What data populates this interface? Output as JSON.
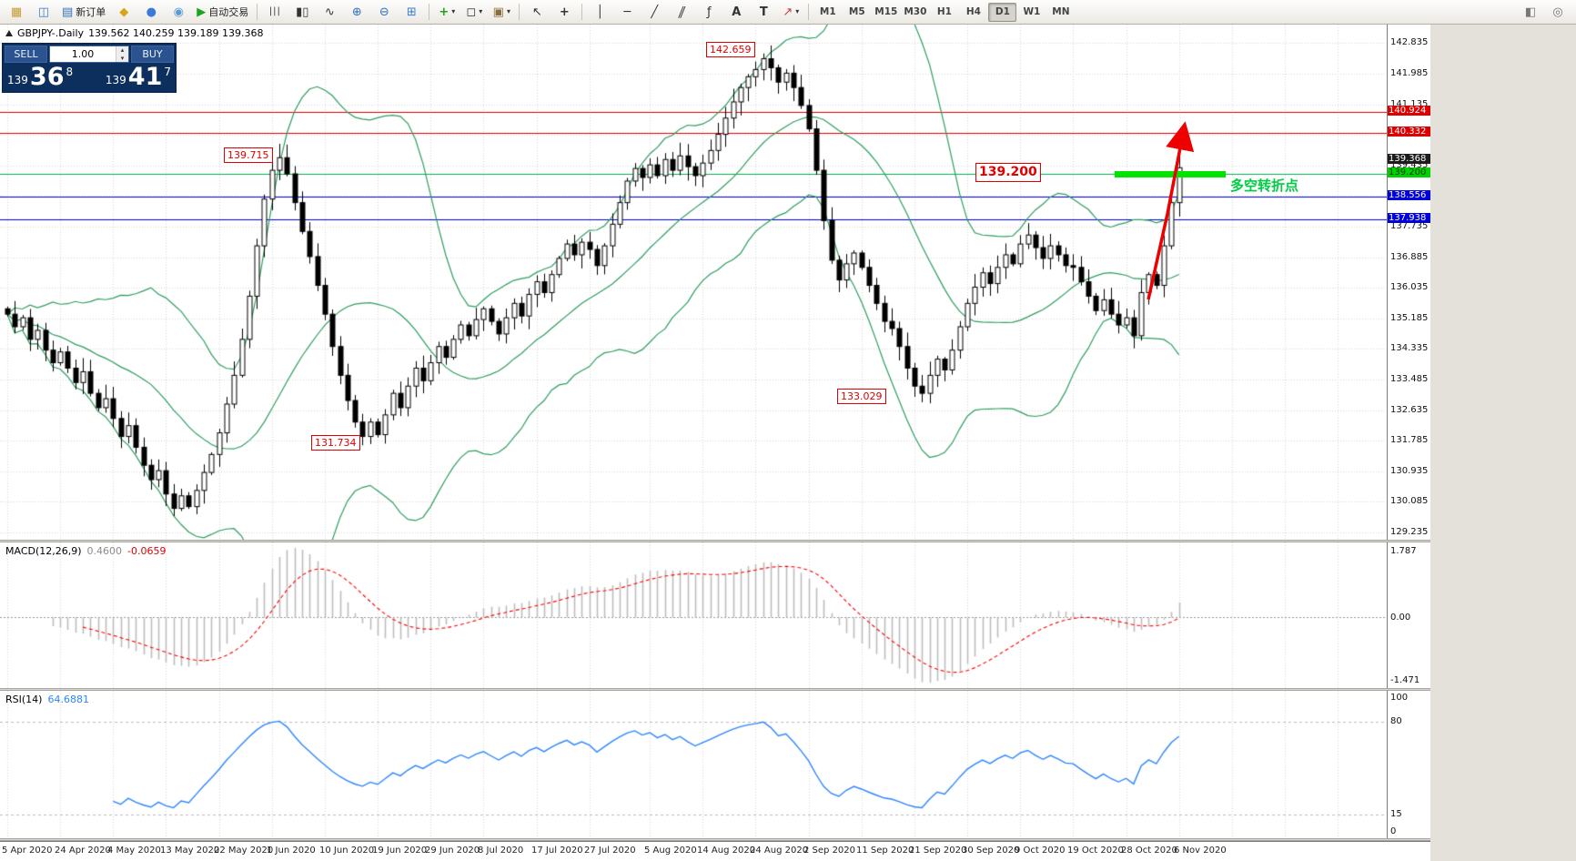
{
  "toolbar": {
    "new_order_label": "新订单",
    "autotrading_label": "自动交易",
    "timeframes": [
      "M1",
      "M5",
      "M15",
      "M30",
      "H1",
      "H4",
      "D1",
      "W1",
      "MN"
    ],
    "active_timeframe": "D1"
  },
  "chart": {
    "symbol": "GBPJPY-.Daily",
    "ohlc": "139.562 140.259 139.189 139.368"
  },
  "trade_panel": {
    "sell_label": "SELL",
    "buy_label": "BUY",
    "volume": "1.00",
    "sell_price_main": "139",
    "sell_price_big": "36",
    "sell_price_sup": "8",
    "buy_price_main": "139",
    "buy_price_big": "41",
    "buy_price_sup": "7"
  },
  "annotations": {
    "high_142": "142.659",
    "high_139": "139.715",
    "level_139200": "139.200",
    "low_133": "133.029",
    "low_131": "131.734",
    "turning_point_text": "多空转折点"
  },
  "levels": {
    "resistance": [
      {
        "price": 140.924,
        "label": "140.924",
        "color": "#dd0000"
      },
      {
        "price": 140.332,
        "label": "140.332",
        "color": "#dd0000"
      }
    ],
    "pivot": {
      "price": 139.2,
      "label": "139.200",
      "color": "#00b050",
      "badge_bg": "#00d200",
      "badge_fg": "#003300"
    },
    "support": [
      {
        "price": 138.556,
        "label": "138.556",
        "color": "#0000dd"
      },
      {
        "price": 137.938,
        "label": "137.938",
        "color": "#0000dd"
      }
    ],
    "current_price": {
      "price": 139.368,
      "label": "139.368",
      "badge_bg": "#1c1c1c",
      "badge_fg": "#ffffff"
    }
  },
  "macd": {
    "header_label": "MACD(12,26,9)",
    "value_main": "0.4600",
    "value_signal": "-0.0659",
    "ticks": [
      "1.787",
      "0.00",
      "-1.471"
    ]
  },
  "rsi": {
    "header_label": "RSI(14)",
    "value": "64.6881",
    "ticks": [
      "100",
      "80",
      "15",
      "0"
    ],
    "levels": [
      80,
      15
    ]
  },
  "price_axis": {
    "first": 142.835,
    "step": 0.85,
    "count": 17
  },
  "time_axis": {
    "dates": [
      "5 Apr 2020",
      "24 Apr 2020",
      "4 May 2020",
      "13 May 2020",
      "22 May 2020",
      "1 Jun 2020",
      "10 Jun 2020",
      "19 Jun 2020",
      "29 Jun 2020",
      "8 Jul 2020",
      "17 Jul 2020",
      "27 Jul 2020",
      "5 Aug 2020",
      "14 Aug 2020",
      "24 Aug 2020",
      "2 Sep 2020",
      "11 Sep 2020",
      "21 Sep 2020",
      "30 Sep 2020",
      "9 Oct 2020",
      "19 Oct 2020",
      "28 Oct 2020",
      "6 Nov 2020"
    ]
  },
  "chart_data": {
    "type": "candlestick",
    "symbol": "GBPJPY",
    "timeframe": "D1",
    "title": "GBPJPY-.Daily",
    "price_range": [
      129.03,
      143.35
    ],
    "closes": [
      135.3,
      134.95,
      135.2,
      134.6,
      134.85,
      134.3,
      133.95,
      134.25,
      133.8,
      133.4,
      133.7,
      133.1,
      132.7,
      132.95,
      132.4,
      131.9,
      132.2,
      131.6,
      131.1,
      130.7,
      130.95,
      130.3,
      129.9,
      130.25,
      129.95,
      130.4,
      130.9,
      131.4,
      132.0,
      132.8,
      133.6,
      134.6,
      135.8,
      137.2,
      138.5,
      139.3,
      139.65,
      139.2,
      138.4,
      137.6,
      136.9,
      136.1,
      135.3,
      134.4,
      133.6,
      132.9,
      132.3,
      131.9,
      132.3,
      131.95,
      132.5,
      133.1,
      132.7,
      133.3,
      133.8,
      133.45,
      133.95,
      134.4,
      134.1,
      134.6,
      135.0,
      134.7,
      135.15,
      135.45,
      135.1,
      134.75,
      135.2,
      135.6,
      135.25,
      135.85,
      136.2,
      135.9,
      136.4,
      136.85,
      137.25,
      136.95,
      137.3,
      137.1,
      136.65,
      137.2,
      137.8,
      138.4,
      139.0,
      139.35,
      139.1,
      139.45,
      139.15,
      139.6,
      139.3,
      139.7,
      139.4,
      139.15,
      139.5,
      139.85,
      140.3,
      140.75,
      141.2,
      141.6,
      141.9,
      142.1,
      142.4,
      142.15,
      141.75,
      142.0,
      141.6,
      141.1,
      140.45,
      139.3,
      137.9,
      136.8,
      136.25,
      136.7,
      137.0,
      136.6,
      136.1,
      135.6,
      135.1,
      134.9,
      134.4,
      133.8,
      133.3,
      133.1,
      133.6,
      134.05,
      133.75,
      134.3,
      134.95,
      135.6,
      136.05,
      136.45,
      136.15,
      136.6,
      136.95,
      136.7,
      137.25,
      137.5,
      137.15,
      136.85,
      137.2,
      136.95,
      136.65,
      136.6,
      136.2,
      135.8,
      135.4,
      135.7,
      135.3,
      135.0,
      135.2,
      134.7,
      135.9,
      136.4,
      136.1,
      137.2,
      138.4,
      139.37
    ],
    "date_indices": [
      0,
      7,
      14,
      21,
      28,
      35,
      42,
      49,
      56,
      63,
      70,
      77,
      85,
      92,
      99,
      106,
      113,
      120,
      127,
      134,
      141,
      148,
      155
    ],
    "bollinger": {
      "period": 20,
      "deviation": 2
    },
    "macd_params": [
      12,
      26,
      9
    ],
    "macd_last": [
      0.46,
      -0.0659
    ],
    "rsi_params": 14,
    "rsi_last": 64.6881,
    "annotated_points": {
      "swing_high": 142.659,
      "swing_high_2": 139.715,
      "pivot_level": 139.2,
      "swing_low": 133.029,
      "swing_low_2": 131.734
    },
    "colors": {
      "up": "#ffffff",
      "down": "#000000",
      "band": "#2f9e5f",
      "macd_hist": "#bdbdbd",
      "macd_signal": "#ff0000",
      "rsi_line": "#2e86ff",
      "grid": "#d8d8d8"
    }
  }
}
